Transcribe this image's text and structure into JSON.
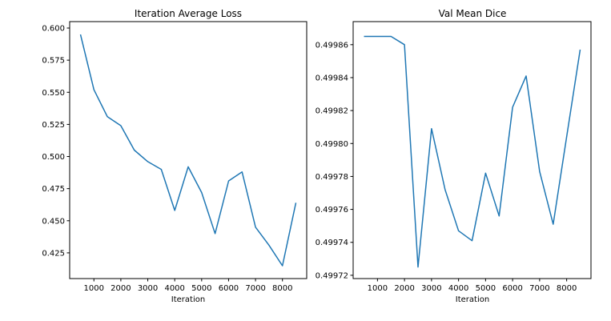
{
  "chart_data": [
    {
      "type": "line",
      "title": "Iteration Average Loss",
      "xlabel": "Iteration",
      "ylabel": "",
      "xlim": [
        100,
        8900
      ],
      "ylim": [
        0.405,
        0.605
      ],
      "xticks": [
        1000,
        2000,
        3000,
        4000,
        5000,
        6000,
        7000,
        8000
      ],
      "yticks": [
        0.425,
        0.45,
        0.475,
        0.5,
        0.525,
        0.55,
        0.575,
        0.6
      ],
      "ytick_decimals": 3,
      "grid": false,
      "color": "#1f77b4",
      "x": [
        500,
        1000,
        1500,
        2000,
        2500,
        3000,
        3500,
        4000,
        4500,
        5000,
        5500,
        6000,
        6500,
        7000,
        7500,
        8000,
        8500
      ],
      "y": [
        0.595,
        0.552,
        0.531,
        0.524,
        0.505,
        0.496,
        0.49,
        0.458,
        0.492,
        0.472,
        0.44,
        0.481,
        0.488,
        0.445,
        0.431,
        0.415,
        0.464
      ]
    },
    {
      "type": "line",
      "title": "Val Mean Dice",
      "xlabel": "Iteration",
      "ylabel": "",
      "xlim": [
        100,
        8900
      ],
      "ylim": [
        0.499718,
        0.499874
      ],
      "xticks": [
        1000,
        2000,
        3000,
        4000,
        5000,
        6000,
        7000,
        8000
      ],
      "yticks": [
        0.49972,
        0.49974,
        0.49976,
        0.49978,
        0.4998,
        0.49982,
        0.49984,
        0.49986
      ],
      "ytick_decimals": 5,
      "grid": false,
      "color": "#1f77b4",
      "x": [
        500,
        1000,
        1500,
        2000,
        2500,
        3000,
        3500,
        4000,
        4500,
        5000,
        5500,
        6000,
        6500,
        7000,
        7500,
        8000,
        8500
      ],
      "y": [
        0.499865,
        0.499865,
        0.499865,
        0.49986,
        0.499725,
        0.499809,
        0.499772,
        0.499747,
        0.499741,
        0.499782,
        0.499756,
        0.499822,
        0.499841,
        0.499783,
        0.499751,
        0.499804,
        0.499857
      ]
    }
  ]
}
